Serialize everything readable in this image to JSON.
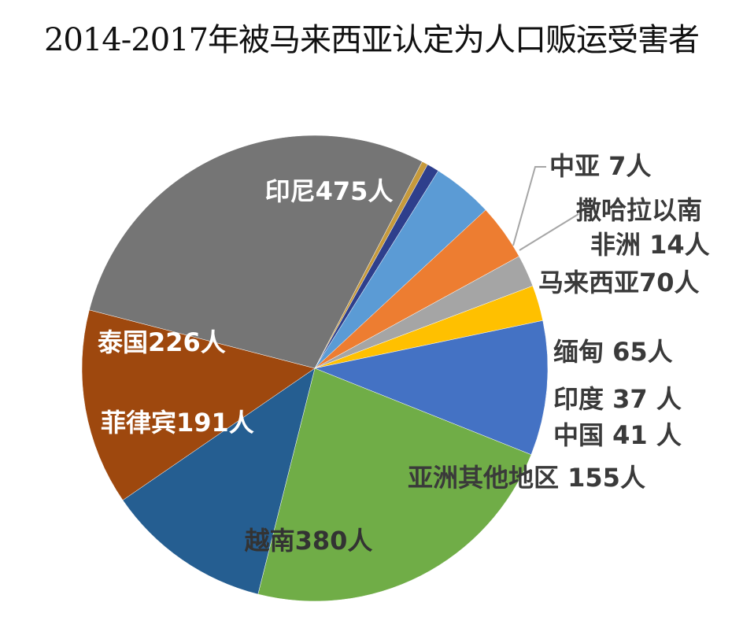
{
  "chart_data": {
    "type": "pie",
    "title": "2014-2017年被马来西亚认定为人口贩运受害者",
    "slices": [
      {
        "name": "印尼",
        "value": 475,
        "label": "印尼475人",
        "color": "#757575"
      },
      {
        "name": "中亚",
        "value": 7,
        "label": "中亚  7人",
        "color": "#c69a3c"
      },
      {
        "name": "撒哈拉以南非洲",
        "value": 14,
        "label_lines": [
          "撒哈拉以南",
          "非洲 14人"
        ],
        "color": "#2e3f8c"
      },
      {
        "name": "马来西亚",
        "value": 70,
        "label": "马来西亚70人",
        "color": "#5b9bd5"
      },
      {
        "name": "缅甸",
        "value": 65,
        "label": "缅甸 65人",
        "color": "#ed7d31"
      },
      {
        "name": "印度",
        "value": 37,
        "label": "印度 37 人",
        "color": "#a5a5a5"
      },
      {
        "name": "中国",
        "value": 41,
        "label": "中国 41 人",
        "color": "#ffc000"
      },
      {
        "name": "亚洲其他地区",
        "value": 155,
        "label": "亚洲其他地区  155人",
        "color": "#4472c4"
      },
      {
        "name": "越南",
        "value": 380,
        "label": "越南380人",
        "color": "#70ad47"
      },
      {
        "name": "菲律宾",
        "value": 191,
        "label": "菲律宾191人",
        "color": "#255e91"
      },
      {
        "name": "泰国",
        "value": 226,
        "label": "泰国226人",
        "color": "#9e480e"
      }
    ]
  }
}
